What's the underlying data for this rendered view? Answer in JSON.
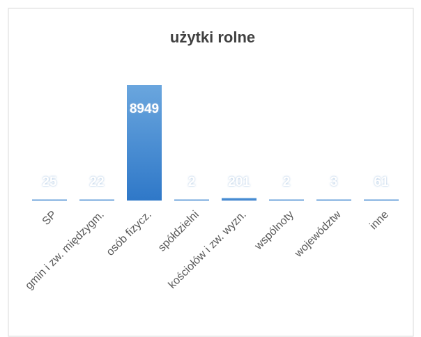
{
  "chart_data": {
    "type": "bar",
    "title": "użytki rolne",
    "categories": [
      "SP",
      "gmin i zw. międzygm.",
      "osób fizycz.",
      "spółdzielni",
      "kościołów i zw. wyzn.",
      "wspólnoty",
      "województw",
      "inne"
    ],
    "values": [
      25,
      22,
      8949,
      2,
      201,
      2,
      3,
      61
    ],
    "color": "#4a8fd6",
    "grid": false
  }
}
